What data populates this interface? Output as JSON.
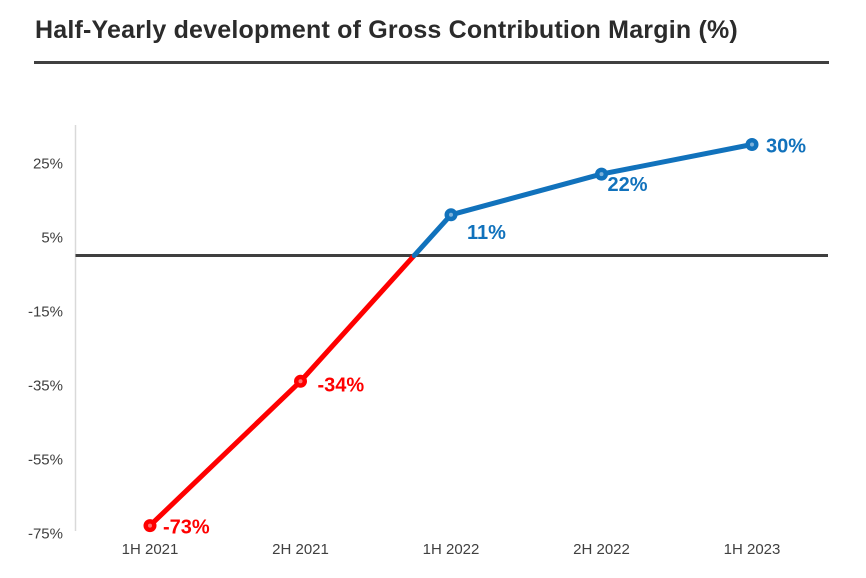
{
  "chart_data": {
    "type": "line",
    "title": "Half-Yearly development of Gross Contribution Margin (%)",
    "categories": [
      "1H 2021",
      "2H 2021",
      "1H 2022",
      "2H 2022",
      "1H 2023"
    ],
    "values": [
      -73,
      -34,
      11,
      22,
      30
    ],
    "data_labels": [
      "-73%",
      "-34%",
      "11%",
      "22%",
      "30%"
    ],
    "y_ticks": [
      25,
      5,
      -15,
      -35,
      -55,
      -75
    ],
    "y_tick_labels": [
      "25%",
      "5%",
      "-15%",
      "-35%",
      "-55%",
      "-75%"
    ],
    "ylim": [
      -80,
      35
    ],
    "xlabel": "",
    "ylabel": "",
    "grid": false,
    "legend": "none",
    "zero_line": true,
    "color_rule": "segments and labels below 0% are red, above 0% are blue; line changes color where it crosses the zero line",
    "colors": {
      "negative": "#fe0000",
      "positive": "#1172bc",
      "marker_highlight": "#ffffff",
      "zero_line": "#3f3f3f",
      "axis_line": "#d9d9d9",
      "tick_text": "#404040",
      "title_text": "#2b2b2b",
      "underline": "#404040"
    }
  }
}
